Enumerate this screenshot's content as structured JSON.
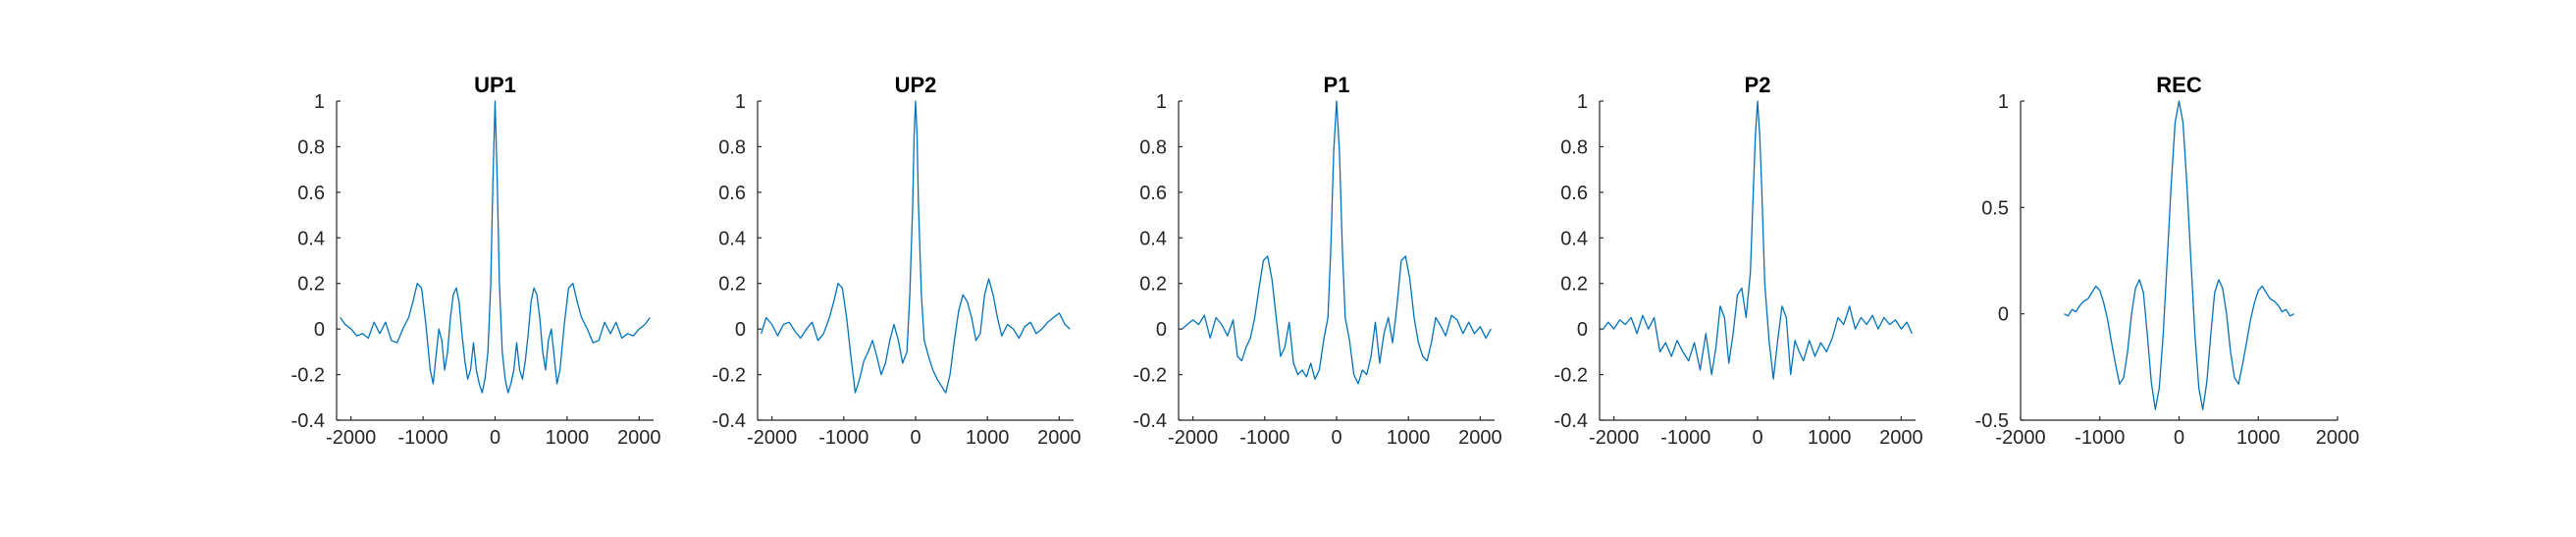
{
  "colors": {
    "series": "#0072BD",
    "axis": "#262626"
  },
  "chart_data": [
    {
      "type": "line",
      "title": "UP1",
      "xlabel": "",
      "ylabel": "",
      "xlim": [
        -2200,
        2200
      ],
      "ylim": [
        -0.4,
        1
      ],
      "xticks": [
        -2000,
        -1000,
        0,
        1000,
        2000
      ],
      "xtick_labels": [
        "-2000",
        "-1000",
        "0",
        "1000",
        "2000"
      ],
      "yticks": [
        -0.4,
        -0.2,
        0,
        0.2,
        0.4,
        0.6,
        0.8,
        1
      ],
      "ytick_labels": [
        "-0.4",
        "-0.2",
        "0",
        "0.2",
        "0.4",
        "0.6",
        "0.8",
        "1"
      ],
      "grid": false,
      "series": [
        {
          "x": [
            -2150,
            -2080,
            -2000,
            -1920,
            -1840,
            -1760,
            -1680,
            -1600,
            -1520,
            -1440,
            -1360,
            -1280,
            -1200,
            -1140,
            -1080,
            -1020,
            -960,
            -900,
            -860,
            -820,
            -780,
            -740,
            -700,
            -660,
            -620,
            -580,
            -540,
            -500,
            -460,
            -420,
            -380,
            -340,
            -300,
            -260,
            -220,
            -180,
            -140,
            -100,
            -60,
            -30,
            0,
            30,
            60,
            100,
            140,
            180,
            220,
            260,
            300,
            340,
            380,
            420,
            460,
            500,
            540,
            580,
            620,
            660,
            700,
            740,
            780,
            820,
            860,
            900,
            960,
            1020,
            1080,
            1140,
            1200,
            1280,
            1360,
            1440,
            1520,
            1600,
            1680,
            1760,
            1840,
            1920,
            2000,
            2080,
            2150
          ],
          "y": [
            0.05,
            0.02,
            0.0,
            -0.03,
            -0.02,
            -0.04,
            0.03,
            -0.02,
            0.03,
            -0.05,
            -0.06,
            0.0,
            0.05,
            0.12,
            0.2,
            0.18,
            0.02,
            -0.18,
            -0.24,
            -0.12,
            0.0,
            -0.05,
            -0.18,
            -0.1,
            0.05,
            0.15,
            0.18,
            0.12,
            -0.02,
            -0.14,
            -0.22,
            -0.18,
            -0.06,
            -0.18,
            -0.24,
            -0.28,
            -0.22,
            -0.1,
            0.2,
            0.65,
            1.0,
            0.65,
            0.2,
            -0.1,
            -0.22,
            -0.28,
            -0.24,
            -0.18,
            -0.06,
            -0.18,
            -0.22,
            -0.14,
            -0.02,
            0.12,
            0.18,
            0.15,
            0.05,
            -0.1,
            -0.18,
            -0.05,
            0.0,
            -0.12,
            -0.24,
            -0.18,
            0.02,
            0.18,
            0.2,
            0.12,
            0.05,
            0.0,
            -0.06,
            -0.05,
            0.03,
            -0.02,
            0.03,
            -0.04,
            -0.02,
            -0.03,
            0.0,
            0.02,
            0.05
          ]
        }
      ]
    },
    {
      "type": "line",
      "title": "UP2",
      "xlabel": "",
      "ylabel": "",
      "xlim": [
        -2200,
        2200
      ],
      "ylim": [
        -0.4,
        1
      ],
      "xticks": [
        -2000,
        -1000,
        0,
        1000,
        2000
      ],
      "xtick_labels": [
        "-2000",
        "-1000",
        "0",
        "1000",
        "2000"
      ],
      "yticks": [
        -0.4,
        -0.2,
        0,
        0.2,
        0.4,
        0.6,
        0.8,
        1
      ],
      "ytick_labels": [
        "-0.4",
        "-0.2",
        "0",
        "0.2",
        "0.4",
        "0.6",
        "0.8",
        "1"
      ],
      "grid": false,
      "series": [
        {
          "x": [
            -2150,
            -2080,
            -2000,
            -1920,
            -1840,
            -1760,
            -1680,
            -1600,
            -1520,
            -1440,
            -1360,
            -1280,
            -1200,
            -1140,
            -1080,
            -1020,
            -960,
            -900,
            -840,
            -780,
            -720,
            -660,
            -600,
            -540,
            -480,
            -420,
            -360,
            -300,
            -240,
            -180,
            -120,
            -80,
            -40,
            -20,
            0,
            20,
            40,
            80,
            120,
            180,
            240,
            300,
            360,
            420,
            480,
            540,
            600,
            660,
            720,
            780,
            840,
            900,
            960,
            1020,
            1080,
            1140,
            1200,
            1280,
            1360,
            1440,
            1520,
            1600,
            1680,
            1760,
            1840,
            1920,
            2000,
            2080,
            2150
          ],
          "y": [
            -0.02,
            0.05,
            0.02,
            -0.03,
            0.02,
            0.03,
            -0.01,
            -0.04,
            0.0,
            0.03,
            -0.05,
            -0.02,
            0.05,
            0.12,
            0.2,
            0.18,
            0.05,
            -0.12,
            -0.28,
            -0.22,
            -0.14,
            -0.1,
            -0.05,
            -0.12,
            -0.2,
            -0.15,
            -0.05,
            0.02,
            -0.05,
            -0.15,
            -0.1,
            0.15,
            0.55,
            0.85,
            1.0,
            0.85,
            0.55,
            0.15,
            -0.05,
            -0.12,
            -0.18,
            -0.22,
            -0.25,
            -0.28,
            -0.2,
            -0.05,
            0.08,
            0.15,
            0.12,
            0.05,
            -0.05,
            -0.02,
            0.15,
            0.22,
            0.15,
            0.05,
            -0.03,
            0.02,
            0.0,
            -0.04,
            0.01,
            0.03,
            -0.02,
            0.0,
            0.03,
            0.05,
            0.07,
            0.02,
            0.0
          ]
        }
      ]
    },
    {
      "type": "line",
      "title": "P1",
      "xlabel": "",
      "ylabel": "",
      "xlim": [
        -2200,
        2200
      ],
      "ylim": [
        -0.4,
        1
      ],
      "xticks": [
        -2000,
        -1000,
        0,
        1000,
        2000
      ],
      "xtick_labels": [
        "-2000",
        "-1000",
        "0",
        "1000",
        "2000"
      ],
      "yticks": [
        -0.4,
        -0.2,
        0,
        0.2,
        0.4,
        0.6,
        0.8,
        1
      ],
      "ytick_labels": [
        "-0.4",
        "-0.2",
        "0",
        "0.2",
        "0.4",
        "0.6",
        "0.8",
        "1"
      ],
      "grid": false,
      "series": [
        {
          "x": [
            -2150,
            -2080,
            -2000,
            -1920,
            -1840,
            -1760,
            -1680,
            -1600,
            -1520,
            -1440,
            -1380,
            -1320,
            -1260,
            -1200,
            -1140,
            -1080,
            -1020,
            -960,
            -900,
            -840,
            -780,
            -720,
            -660,
            -600,
            -540,
            -480,
            -420,
            -360,
            -300,
            -240,
            -180,
            -120,
            -80,
            -40,
            0,
            40,
            80,
            120,
            180,
            240,
            300,
            360,
            420,
            480,
            540,
            600,
            660,
            720,
            780,
            840,
            900,
            960,
            1020,
            1080,
            1140,
            1200,
            1260,
            1320,
            1380,
            1440,
            1520,
            1600,
            1680,
            1760,
            1840,
            1920,
            2000,
            2080,
            2150
          ],
          "y": [
            0.0,
            0.02,
            0.04,
            0.02,
            0.06,
            -0.04,
            0.05,
            0.02,
            -0.03,
            0.04,
            -0.12,
            -0.14,
            -0.08,
            -0.04,
            0.05,
            0.18,
            0.3,
            0.32,
            0.22,
            0.05,
            -0.12,
            -0.08,
            0.03,
            -0.15,
            -0.2,
            -0.18,
            -0.21,
            -0.15,
            -0.22,
            -0.18,
            -0.05,
            0.05,
            0.35,
            0.78,
            1.0,
            0.78,
            0.35,
            0.05,
            -0.05,
            -0.2,
            -0.24,
            -0.18,
            -0.2,
            -0.12,
            0.03,
            -0.15,
            -0.02,
            0.05,
            -0.06,
            0.1,
            0.3,
            0.32,
            0.22,
            0.05,
            -0.06,
            -0.12,
            -0.14,
            -0.06,
            0.05,
            0.02,
            -0.03,
            0.06,
            0.04,
            -0.02,
            0.03,
            -0.02,
            0.01,
            -0.04,
            0.0
          ]
        }
      ]
    },
    {
      "type": "line",
      "title": "P2",
      "xlabel": "",
      "ylabel": "",
      "xlim": [
        -2200,
        2200
      ],
      "ylim": [
        -0.4,
        1
      ],
      "xticks": [
        -2000,
        -1000,
        0,
        1000,
        2000
      ],
      "xtick_labels": [
        "-2000",
        "-1000",
        "0",
        "1000",
        "2000"
      ],
      "yticks": [
        -0.4,
        -0.2,
        0,
        0.2,
        0.4,
        0.6,
        0.8,
        1
      ],
      "ytick_labels": [
        "-0.4",
        "-0.2",
        "0",
        "0.2",
        "0.4",
        "0.6",
        "0.8",
        "1"
      ],
      "grid": false,
      "series": [
        {
          "x": [
            -2150,
            -2080,
            -2000,
            -1920,
            -1840,
            -1760,
            -1680,
            -1600,
            -1520,
            -1440,
            -1360,
            -1280,
            -1200,
            -1120,
            -1040,
            -960,
            -880,
            -800,
            -720,
            -640,
            -580,
            -520,
            -460,
            -400,
            -340,
            -280,
            -220,
            -160,
            -100,
            -60,
            -30,
            0,
            30,
            60,
            100,
            160,
            220,
            280,
            340,
            400,
            460,
            520,
            580,
            640,
            720,
            800,
            880,
            960,
            1040,
            1120,
            1200,
            1280,
            1360,
            1440,
            1520,
            1600,
            1680,
            1760,
            1840,
            1920,
            2000,
            2080,
            2150
          ],
          "y": [
            0.0,
            0.03,
            0.0,
            0.04,
            0.02,
            0.05,
            -0.02,
            0.06,
            0.0,
            0.05,
            -0.1,
            -0.06,
            -0.12,
            -0.05,
            -0.1,
            -0.14,
            -0.06,
            -0.18,
            -0.02,
            -0.2,
            -0.08,
            0.1,
            0.05,
            -0.15,
            -0.02,
            0.15,
            0.18,
            0.05,
            0.25,
            0.6,
            0.85,
            1.0,
            0.85,
            0.6,
            0.2,
            -0.05,
            -0.22,
            -0.05,
            0.1,
            0.05,
            -0.2,
            -0.05,
            -0.1,
            -0.14,
            -0.05,
            -0.12,
            -0.06,
            -0.1,
            -0.04,
            0.05,
            0.02,
            0.1,
            0.0,
            0.05,
            0.02,
            0.06,
            0.0,
            0.05,
            0.02,
            0.04,
            0.0,
            0.03,
            -0.02
          ]
        }
      ]
    },
    {
      "type": "line",
      "title": "REC",
      "xlabel": "",
      "ylabel": "",
      "xlim": [
        -2000,
        2000
      ],
      "ylim": [
        -0.5,
        1
      ],
      "xticks": [
        -2000,
        -1000,
        0,
        1000,
        2000
      ],
      "xtick_labels": [
        "-2000",
        "-1000",
        "0",
        "1000",
        "2000"
      ],
      "yticks": [
        -0.5,
        0,
        0.5,
        1
      ],
      "ytick_labels": [
        "-0.5",
        "0",
        "0.5",
        "1"
      ],
      "grid": false,
      "series": [
        {
          "x": [
            -1450,
            -1400,
            -1350,
            -1300,
            -1250,
            -1200,
            -1150,
            -1100,
            -1050,
            -1000,
            -950,
            -900,
            -850,
            -800,
            -750,
            -700,
            -650,
            -600,
            -550,
            -500,
            -450,
            -400,
            -350,
            -300,
            -250,
            -200,
            -150,
            -100,
            -50,
            0,
            50,
            100,
            150,
            200,
            250,
            300,
            350,
            400,
            450,
            500,
            550,
            600,
            650,
            700,
            750,
            800,
            850,
            900,
            950,
            1000,
            1050,
            1100,
            1150,
            1200,
            1250,
            1300,
            1350,
            1400,
            1450
          ],
          "y": [
            0.0,
            -0.01,
            0.02,
            0.01,
            0.04,
            0.06,
            0.07,
            0.1,
            0.13,
            0.11,
            0.05,
            -0.03,
            -0.14,
            -0.24,
            -0.33,
            -0.3,
            -0.18,
            0.0,
            0.12,
            0.16,
            0.1,
            -0.1,
            -0.32,
            -0.45,
            -0.35,
            -0.1,
            0.25,
            0.6,
            0.9,
            1.0,
            0.9,
            0.6,
            0.25,
            -0.1,
            -0.35,
            -0.45,
            -0.32,
            -0.1,
            0.1,
            0.16,
            0.12,
            0.0,
            -0.18,
            -0.3,
            -0.33,
            -0.24,
            -0.14,
            -0.03,
            0.05,
            0.11,
            0.13,
            0.1,
            0.07,
            0.06,
            0.04,
            0.01,
            0.02,
            -0.01,
            0.0
          ]
        }
      ]
    }
  ]
}
